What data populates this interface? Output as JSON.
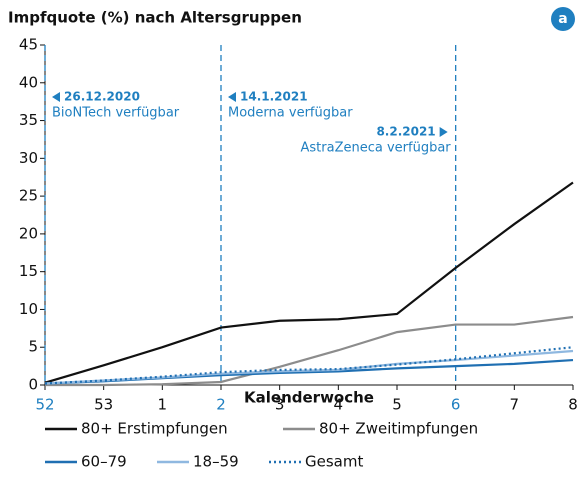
{
  "chart_data": {
    "type": "line",
    "title": "Impfquote (%) nach Altersgruppen",
    "badge": "a",
    "x_label": "Kalenderwoche",
    "categories": [
      "52",
      "53",
      "1",
      "2",
      "3",
      "4",
      "5",
      "6",
      "7",
      "8"
    ],
    "ylim": [
      0,
      45
    ],
    "yticks": [
      0,
      5,
      10,
      15,
      20,
      25,
      30,
      35,
      40,
      45
    ],
    "series": [
      {
        "name": "80+ Erstimpfungen",
        "color": "#111111",
        "style": "solid",
        "values": [
          0.3,
          2.6,
          5,
          7.6,
          8.5,
          8.7,
          9.4,
          15.5,
          21.3,
          26.8
        ]
      },
      {
        "name": "80+ Zweitimpfungen",
        "color": "#8c8c8c",
        "style": "solid",
        "values": [
          0,
          0,
          0.1,
          0.4,
          2.4,
          4.6,
          7,
          8,
          8,
          9
        ]
      },
      {
        "name": "60–79",
        "color": "#1f6fb2",
        "style": "solid",
        "values": [
          0.2,
          0.5,
          0.9,
          1.3,
          1.6,
          1.8,
          2.2,
          2.5,
          2.8,
          3.3
        ]
      },
      {
        "name": "18–59",
        "color": "#8fb8e0",
        "style": "solid",
        "values": [
          0.2,
          0.6,
          1,
          1.5,
          1.8,
          2,
          2.8,
          3.3,
          3.9,
          4.5
        ]
      },
      {
        "name": "Gesamt",
        "color": "#1f6fb2",
        "style": "dotted",
        "values": [
          0.2,
          0.6,
          1.1,
          1.7,
          2.0,
          2.1,
          2.7,
          3.4,
          4.2,
          5.0
        ]
      }
    ],
    "markers": [
      {
        "category": "52",
        "date": "26.12.2020",
        "text": "BioNTech verfügbar",
        "side": "right",
        "row": 0
      },
      {
        "category": "2",
        "date": "14.1.2021",
        "text": "Moderna verfügbar",
        "side": "right",
        "row": 0
      },
      {
        "category": "6",
        "date": "8.2.2021",
        "text": "AstraZeneca verfügbar",
        "side": "left",
        "row": 1
      }
    ],
    "marker_color": "#1f7fc0"
  }
}
